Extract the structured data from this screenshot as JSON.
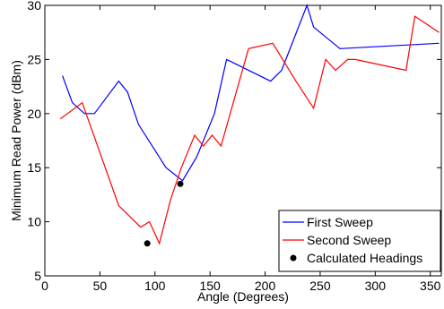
{
  "chart_data": {
    "type": "line",
    "title": "",
    "xlabel": "Angle (Degrees)",
    "ylabel": "Minimum Read Power (dBm)",
    "xlim": [
      0,
      360
    ],
    "ylim": [
      5,
      30
    ],
    "xticks": [
      0,
      50,
      100,
      150,
      200,
      250,
      300,
      350
    ],
    "yticks": [
      5,
      10,
      15,
      20,
      25,
      30
    ],
    "grid": false,
    "legend_position": "bottom-right",
    "series": [
      {
        "name": "First Sweep",
        "style": "line",
        "color": "#0000ff",
        "x": [
          16,
          25,
          36,
          45,
          67,
          75,
          85,
          110,
          125,
          138,
          154,
          165,
          205,
          215,
          238,
          244,
          268,
          358
        ],
        "y": [
          23.5,
          21,
          20,
          20,
          23,
          22,
          19,
          15,
          13.8,
          16,
          20,
          25,
          23,
          24,
          30,
          28,
          26,
          26.5
        ]
      },
      {
        "name": "Second Sweep",
        "style": "line",
        "color": "#ff0000",
        "x": [
          14,
          34,
          67,
          87,
          95,
          104,
          114,
          124,
          136,
          144,
          152,
          160,
          185,
          207,
          228,
          244,
          255,
          264,
          275,
          282,
          328,
          336,
          358
        ],
        "y": [
          19.5,
          21,
          11.5,
          9.5,
          10,
          8,
          12,
          15,
          18,
          17,
          18,
          17,
          26,
          26.5,
          23,
          20.5,
          25,
          24,
          25,
          25,
          24,
          29,
          27.5
        ]
      },
      {
        "name": "Calculated Headings",
        "style": "marker",
        "color": "#000000",
        "x": [
          93,
          123
        ],
        "y": [
          8,
          13.5
        ]
      }
    ]
  }
}
